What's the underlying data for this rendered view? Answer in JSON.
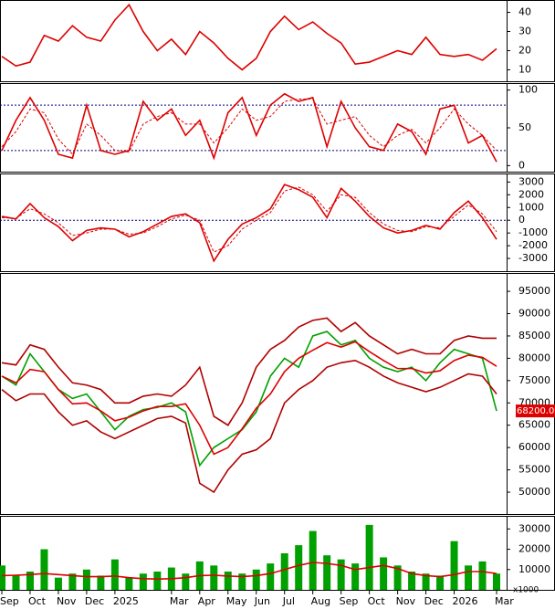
{
  "chart_data": [
    {
      "type": "line",
      "ylim": [
        4,
        46
      ],
      "yticks": [
        10,
        20,
        30,
        40
      ],
      "series": [
        {
          "color": "#dd0000",
          "values": [
            17,
            12,
            14,
            28,
            25,
            33,
            27,
            25,
            36,
            44,
            30,
            20,
            26,
            18,
            30,
            24,
            16,
            10,
            16,
            30,
            38,
            31,
            35,
            29,
            24,
            13,
            14,
            17,
            20,
            18,
            27,
            18,
            17,
            18,
            15,
            21
          ]
        }
      ]
    },
    {
      "type": "line",
      "ylim": [
        -8,
        108
      ],
      "yticks": [
        0,
        50,
        100
      ],
      "ref_lines": [
        20,
        80
      ],
      "series": [
        {
          "color": "#dd0000",
          "values": [
            20,
            60,
            90,
            60,
            15,
            10,
            80,
            20,
            15,
            20,
            85,
            60,
            75,
            40,
            60,
            10,
            70,
            90,
            40,
            80,
            95,
            85,
            90,
            25,
            85,
            50,
            25,
            20,
            55,
            45,
            15,
            75,
            80,
            30,
            40,
            5
          ]
        },
        {
          "color": "#dd0000",
          "dash": true,
          "values": [
            25,
            45,
            75,
            70,
            35,
            15,
            55,
            40,
            20,
            18,
            55,
            65,
            70,
            55,
            55,
            30,
            50,
            75,
            60,
            65,
            85,
            88,
            88,
            55,
            60,
            65,
            40,
            25,
            40,
            48,
            30,
            50,
            75,
            55,
            40,
            20
          ]
        }
      ]
    },
    {
      "type": "line",
      "ylim": [
        -4000,
        3600
      ],
      "yticks": [
        -3000,
        -2000,
        -1000,
        0,
        1000,
        2000,
        3000
      ],
      "ref_lines": [
        0
      ],
      "series": [
        {
          "color": "#dd0000",
          "values": [
            300,
            100,
            1300,
            200,
            -500,
            -1600,
            -800,
            -600,
            -700,
            -1300,
            -900,
            -300,
            300,
            500,
            -200,
            -3200,
            -1500,
            -300,
            200,
            900,
            2800,
            2400,
            1800,
            200,
            2500,
            1500,
            300,
            -600,
            -1000,
            -800,
            -400,
            -700,
            600,
            1500,
            200,
            -1500
          ]
        },
        {
          "color": "#dd0000",
          "dash": true,
          "values": [
            200,
            150,
            900,
            500,
            -200,
            -1200,
            -1000,
            -700,
            -700,
            -1100,
            -1000,
            -500,
            100,
            400,
            0,
            -2500,
            -2000,
            -700,
            0,
            600,
            2300,
            2600,
            2000,
            700,
            2000,
            1800,
            600,
            -300,
            -800,
            -900,
            -500,
            -600,
            300,
            1200,
            500,
            -900
          ]
        }
      ]
    },
    {
      "type": "line",
      "ylim": [
        45100,
        98900
      ],
      "yticks": [
        50000,
        55000,
        60000,
        65000,
        70000,
        75000,
        80000,
        85000,
        90000,
        95000
      ],
      "series": [
        {
          "color": "#00a000",
          "values": [
            76000,
            74000,
            81000,
            77000,
            73000,
            71000,
            72000,
            68000,
            64000,
            67000,
            68500,
            69000,
            70000,
            68000,
            56000,
            60000,
            62000,
            64000,
            68000,
            76000,
            80000,
            78000,
            85000,
            86000,
            83000,
            84000,
            80000,
            78000,
            77000,
            78000,
            75000,
            79000,
            82000,
            81000,
            80000,
            68200
          ],
          "value_labels": [
            null,
            null,
            null,
            null,
            null,
            null,
            null,
            null,
            null,
            null,
            null,
            null,
            null,
            null,
            null,
            null,
            null,
            null,
            null,
            null,
            null,
            null,
            null,
            null,
            null,
            null,
            null,
            null,
            null,
            null,
            null,
            null,
            null,
            null,
            null,
            "68200.00"
          ]
        },
        {
          "color": "#b00000",
          "values": [
            79000,
            78500,
            83000,
            82000,
            78000,
            74500,
            74000,
            73000,
            70000,
            70000,
            71500,
            72000,
            71500,
            74000,
            78000,
            67000,
            65000,
            70000,
            78000,
            82000,
            84000,
            87000,
            88500,
            89000,
            86000,
            88000,
            85000,
            83000,
            81000,
            82000,
            81000,
            81000,
            84000,
            85000,
            84500,
            84500
          ]
        },
        {
          "color": "#dd0000",
          "values": [
            76000,
            74500,
            77500,
            77000,
            73000,
            69800,
            70000,
            68200,
            66000,
            66800,
            68200,
            69200,
            69200,
            69800,
            65000,
            58500,
            60000,
            64200,
            68800,
            72000,
            77000,
            80000,
            81800,
            83500,
            82500,
            83700,
            81500,
            79500,
            77700,
            77700,
            76700,
            77200,
            79500,
            80700,
            80200,
            78200
          ]
        },
        {
          "color": "#b00000",
          "values": [
            73000,
            70500,
            72000,
            72000,
            68000,
            65000,
            66000,
            63500,
            62000,
            63500,
            65000,
            66500,
            67000,
            65500,
            52000,
            50000,
            55000,
            58500,
            59500,
            62000,
            70000,
            73000,
            75000,
            78000,
            79000,
            79500,
            78000,
            76000,
            74500,
            73500,
            72500,
            73500,
            75000,
            76500,
            76000,
            72000
          ]
        }
      ]
    },
    {
      "type": "bar",
      "ylim": [
        0,
        36000
      ],
      "yticks": [
        10000,
        20000,
        30000
      ],
      "unit": "x1000",
      "categories": [
        "Sep",
        null,
        "Oct",
        null,
        "Nov",
        null,
        "Dec",
        null,
        "2025",
        null,
        null,
        null,
        "Mar",
        null,
        "Apr",
        null,
        "May",
        null,
        "Jun",
        null,
        "Jul",
        null,
        "Aug",
        null,
        "Sep",
        null,
        "Oct",
        null,
        "Nov",
        null,
        "Dec",
        null,
        "2026",
        null,
        null,
        "Mar"
      ],
      "series": [
        {
          "color": "#00a000",
          "values": [
            12000,
            7000,
            9000,
            20000,
            6000,
            8000,
            10000,
            7000,
            15000,
            6000,
            8000,
            9000,
            11000,
            8000,
            14000,
            12000,
            9000,
            8000,
            10000,
            13000,
            18000,
            22000,
            29000,
            17000,
            15000,
            13000,
            32000,
            16000,
            12000,
            9000,
            8000,
            7000,
            24000,
            12000,
            14000,
            8000
          ]
        },
        {
          "color": "#dd0000",
          "line": true,
          "values": [
            7000,
            7200,
            7500,
            8000,
            7500,
            7000,
            6500,
            6500,
            6800,
            6000,
            5500,
            5300,
            5500,
            6000,
            7000,
            7200,
            6800,
            6500,
            7000,
            8000,
            10000,
            12000,
            13500,
            13000,
            12000,
            10000,
            11000,
            12000,
            10500,
            8000,
            7000,
            6500,
            7500,
            9000,
            9000,
            8000
          ]
        }
      ]
    }
  ]
}
